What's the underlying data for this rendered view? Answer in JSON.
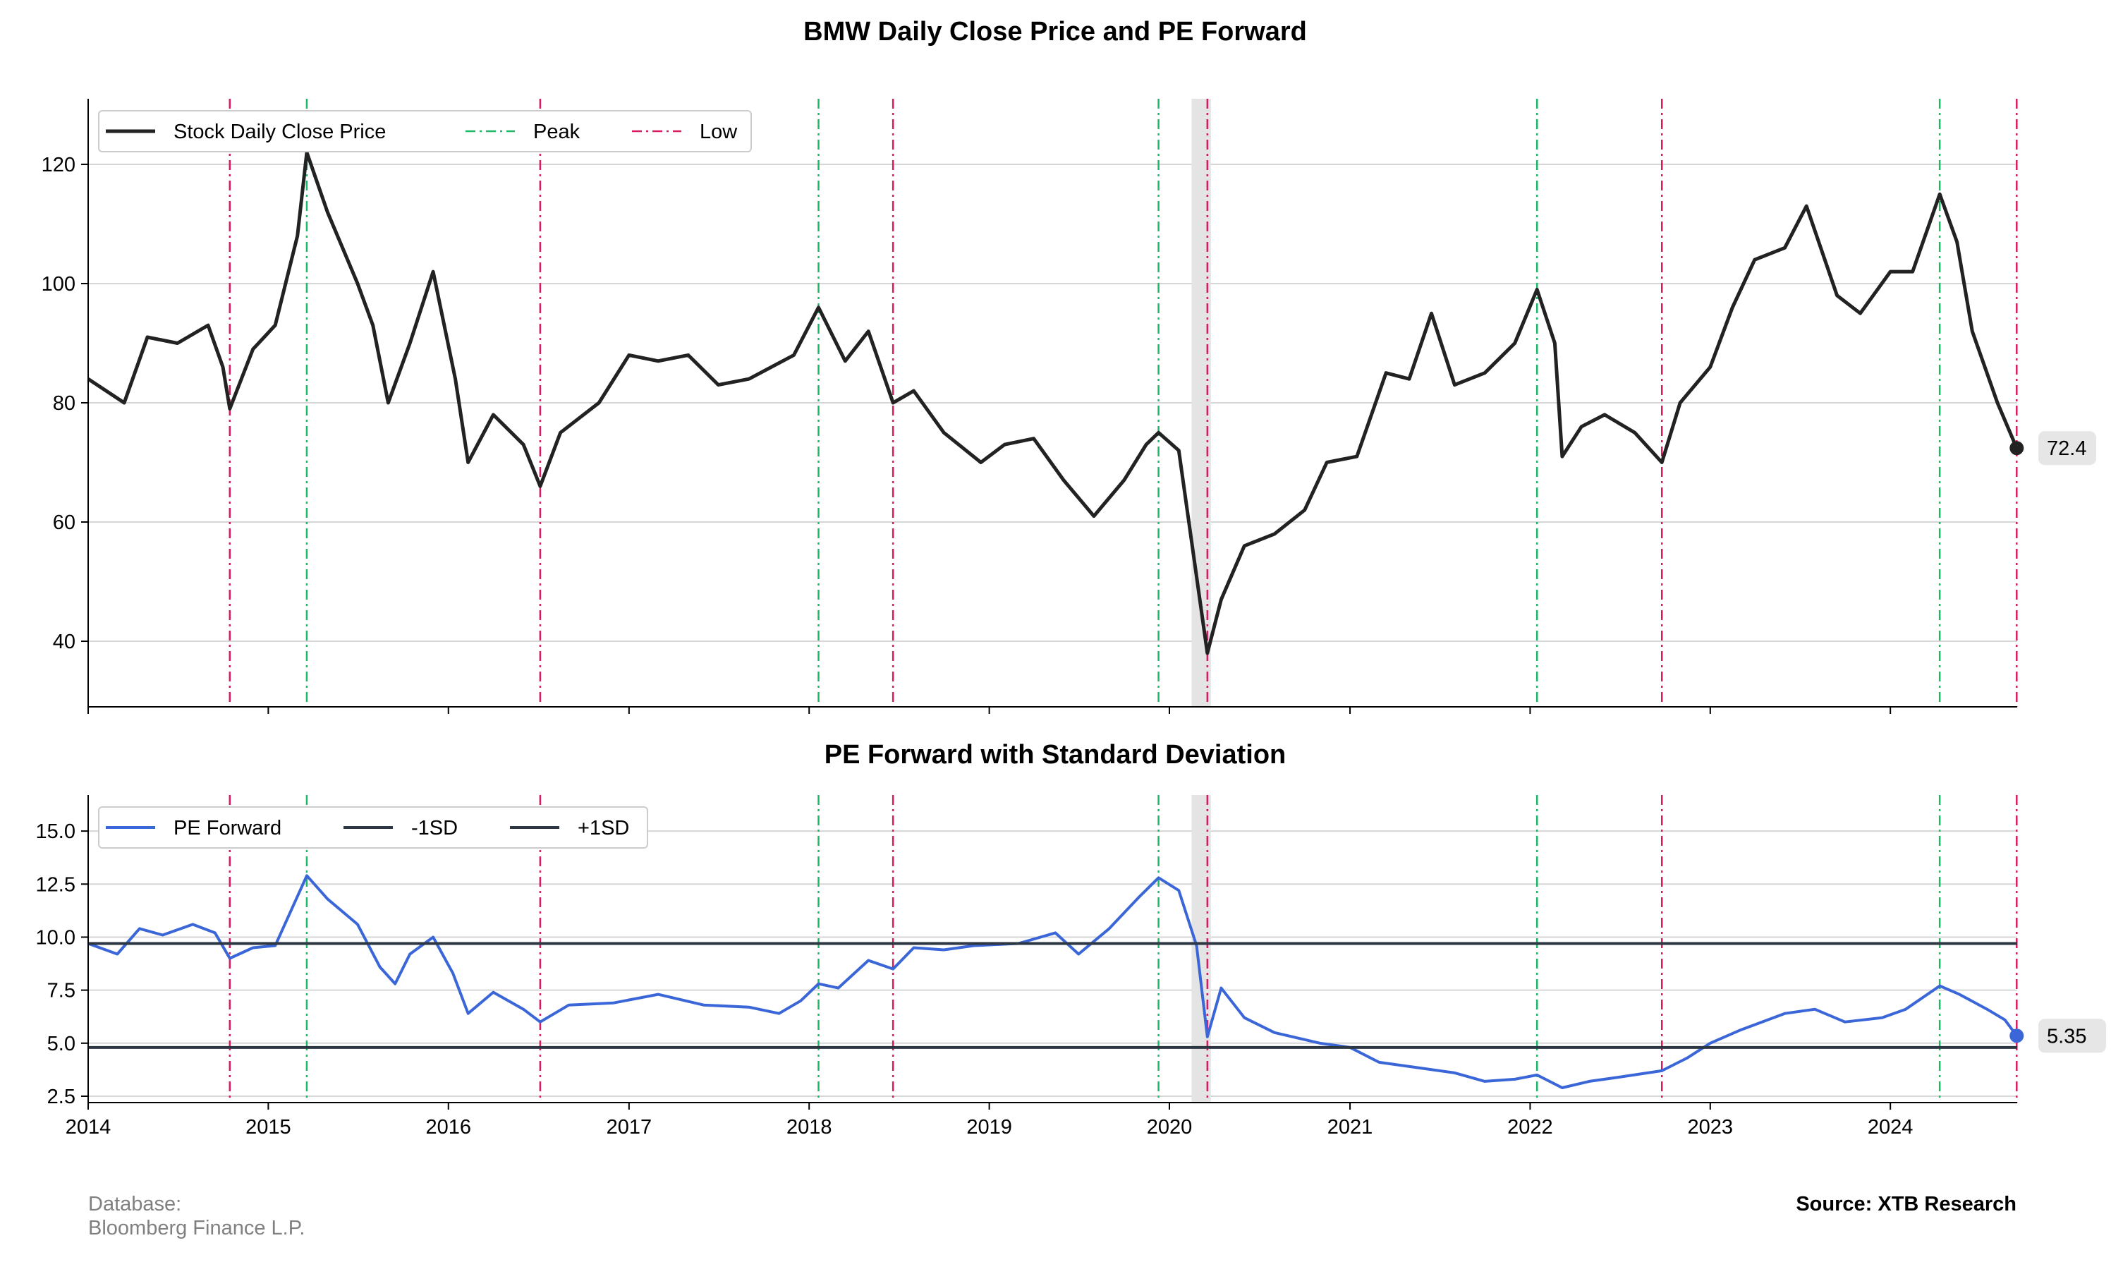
{
  "chart_data": [
    {
      "type": "line",
      "title": "BMW Daily Close Price and PE Forward",
      "xlabel": "",
      "ylabel": "",
      "ylim": [
        29,
        131
      ],
      "yticks": [
        40,
        60,
        80,
        100,
        120
      ],
      "xlim": [
        "2014-01-01",
        "2024-09-14"
      ],
      "grid": true,
      "legend_position": "top-left",
      "series": [
        {
          "name": "Stock Daily Close Price",
          "color": "#222222",
          "points": [
            [
              "2014-01-01",
              84
            ],
            [
              "2014-03-15",
              80
            ],
            [
              "2014-05-01",
              91
            ],
            [
              "2014-07-01",
              90
            ],
            [
              "2014-09-01",
              93
            ],
            [
              "2014-10-01",
              86
            ],
            [
              "2014-10-15",
              79
            ],
            [
              "2014-12-01",
              89
            ],
            [
              "2015-01-15",
              93
            ],
            [
              "2015-03-01",
              108
            ],
            [
              "2015-03-20",
              122
            ],
            [
              "2015-05-01",
              112
            ],
            [
              "2015-07-01",
              100
            ],
            [
              "2015-08-01",
              93
            ],
            [
              "2015-09-01",
              80
            ],
            [
              "2015-10-15",
              90
            ],
            [
              "2015-12-01",
              102
            ],
            [
              "2016-01-15",
              84
            ],
            [
              "2016-02-10",
              70
            ],
            [
              "2016-04-01",
              78
            ],
            [
              "2016-06-01",
              73
            ],
            [
              "2016-07-05",
              66
            ],
            [
              "2016-08-15",
              75
            ],
            [
              "2016-11-01",
              80
            ],
            [
              "2017-01-01",
              88
            ],
            [
              "2017-03-01",
              87
            ],
            [
              "2017-05-01",
              88
            ],
            [
              "2017-07-01",
              83
            ],
            [
              "2017-09-01",
              84
            ],
            [
              "2017-12-01",
              88
            ],
            [
              "2018-01-20",
              96
            ],
            [
              "2018-03-15",
              87
            ],
            [
              "2018-05-01",
              92
            ],
            [
              "2018-06-20",
              80
            ],
            [
              "2018-08-01",
              82
            ],
            [
              "2018-10-01",
              75
            ],
            [
              "2018-12-15",
              70
            ],
            [
              "2019-02-01",
              73
            ],
            [
              "2019-04-01",
              74
            ],
            [
              "2019-06-01",
              67
            ],
            [
              "2019-08-01",
              61
            ],
            [
              "2019-10-01",
              67
            ],
            [
              "2019-11-15",
              73
            ],
            [
              "2019-12-10",
              75
            ],
            [
              "2020-01-20",
              72
            ],
            [
              "2020-03-18",
              38
            ],
            [
              "2020-04-15",
              47
            ],
            [
              "2020-06-01",
              56
            ],
            [
              "2020-08-01",
              58
            ],
            [
              "2020-10-01",
              62
            ],
            [
              "2020-11-15",
              70
            ],
            [
              "2021-01-15",
              71
            ],
            [
              "2021-03-15",
              85
            ],
            [
              "2021-05-01",
              84
            ],
            [
              "2021-06-15",
              95
            ],
            [
              "2021-08-01",
              83
            ],
            [
              "2021-10-01",
              85
            ],
            [
              "2021-12-01",
              90
            ],
            [
              "2022-01-15",
              99
            ],
            [
              "2022-02-20",
              90
            ],
            [
              "2022-03-07",
              71
            ],
            [
              "2022-04-15",
              76
            ],
            [
              "2022-06-01",
              78
            ],
            [
              "2022-08-01",
              75
            ],
            [
              "2022-09-25",
              70
            ],
            [
              "2022-11-01",
              80
            ],
            [
              "2023-01-01",
              86
            ],
            [
              "2023-02-15",
              96
            ],
            [
              "2023-04-01",
              104
            ],
            [
              "2023-06-01",
              106
            ],
            [
              "2023-07-15",
              113
            ],
            [
              "2023-09-15",
              98
            ],
            [
              "2023-11-01",
              95
            ],
            [
              "2024-01-01",
              102
            ],
            [
              "2024-02-15",
              102
            ],
            [
              "2024-04-10",
              115
            ],
            [
              "2024-05-15",
              107
            ],
            [
              "2024-06-15",
              92
            ],
            [
              "2024-08-05",
              80
            ],
            [
              "2024-09-13",
              72.4
            ]
          ]
        }
      ],
      "peaks": [
        "2015-03-20",
        "2018-01-20",
        "2019-12-10",
        "2022-01-15",
        "2024-04-10"
      ],
      "lows": [
        "2014-10-15",
        "2016-07-05",
        "2018-06-20",
        "2020-03-18",
        "2022-09-25",
        "2024-09-13"
      ],
      "peak_color": "#1db866",
      "low_color": "#d81b60",
      "shaded_range": [
        "2020-02-15",
        "2020-03-25"
      ],
      "last_value_label": "72.4",
      "legend": [
        "Stock Daily Close Price",
        "Peak",
        "Low"
      ]
    },
    {
      "type": "line",
      "title": "PE Forward with Standard Deviation",
      "xlabel": "",
      "ylabel": "",
      "ylim": [
        2.2,
        16.7
      ],
      "yticks": [
        "2.5",
        "5.0",
        "7.5",
        "10.0",
        "12.5",
        "15.0"
      ],
      "xticks": [
        "2014",
        "2015",
        "2016",
        "2017",
        "2018",
        "2019",
        "2020",
        "2021",
        "2022",
        "2023",
        "2024"
      ],
      "grid": true,
      "legend_position": "top-left",
      "series": [
        {
          "name": "PE Forward",
          "color": "#3a66d8",
          "points": [
            [
              "2014-01-01",
              9.7
            ],
            [
              "2014-03-01",
              9.2
            ],
            [
              "2014-04-15",
              10.4
            ],
            [
              "2014-06-01",
              10.1
            ],
            [
              "2014-08-01",
              10.6
            ],
            [
              "2014-09-15",
              10.2
            ],
            [
              "2014-10-15",
              9.0
            ],
            [
              "2014-12-01",
              9.5
            ],
            [
              "2015-01-15",
              9.6
            ],
            [
              "2015-02-15",
              11.2
            ],
            [
              "2015-03-20",
              12.9
            ],
            [
              "2015-05-01",
              11.8
            ],
            [
              "2015-07-01",
              10.6
            ],
            [
              "2015-08-15",
              8.6
            ],
            [
              "2015-09-15",
              7.8
            ],
            [
              "2015-10-15",
              9.2
            ],
            [
              "2015-12-01",
              10.0
            ],
            [
              "2016-01-10",
              8.3
            ],
            [
              "2016-02-10",
              6.4
            ],
            [
              "2016-04-01",
              7.4
            ],
            [
              "2016-06-01",
              6.6
            ],
            [
              "2016-07-05",
              6.0
            ],
            [
              "2016-09-01",
              6.8
            ],
            [
              "2016-12-01",
              6.9
            ],
            [
              "2017-03-01",
              7.3
            ],
            [
              "2017-06-01",
              6.8
            ],
            [
              "2017-09-01",
              6.7
            ],
            [
              "2017-11-01",
              6.4
            ],
            [
              "2017-12-15",
              7.0
            ],
            [
              "2018-01-20",
              7.8
            ],
            [
              "2018-03-01",
              7.6
            ],
            [
              "2018-05-01",
              8.9
            ],
            [
              "2018-06-20",
              8.5
            ],
            [
              "2018-08-01",
              9.5
            ],
            [
              "2018-10-01",
              9.4
            ],
            [
              "2018-12-01",
              9.6
            ],
            [
              "2019-03-01",
              9.7
            ],
            [
              "2019-05-15",
              10.2
            ],
            [
              "2019-07-01",
              9.2
            ],
            [
              "2019-09-01",
              10.4
            ],
            [
              "2019-11-01",
              11.9
            ],
            [
              "2019-12-10",
              12.8
            ],
            [
              "2020-01-20",
              12.2
            ],
            [
              "2020-02-25",
              9.6
            ],
            [
              "2020-03-18",
              5.3
            ],
            [
              "2020-04-15",
              7.6
            ],
            [
              "2020-06-01",
              6.2
            ],
            [
              "2020-08-01",
              5.5
            ],
            [
              "2020-11-01",
              5.0
            ],
            [
              "2021-01-01",
              4.8
            ],
            [
              "2021-03-01",
              4.1
            ],
            [
              "2021-06-01",
              3.8
            ],
            [
              "2021-08-01",
              3.6
            ],
            [
              "2021-10-01",
              3.2
            ],
            [
              "2021-12-01",
              3.3
            ],
            [
              "2022-01-15",
              3.5
            ],
            [
              "2022-03-07",
              2.9
            ],
            [
              "2022-05-01",
              3.2
            ],
            [
              "2022-07-01",
              3.4
            ],
            [
              "2022-09-25",
              3.7
            ],
            [
              "2022-11-15",
              4.3
            ],
            [
              "2023-01-01",
              5.0
            ],
            [
              "2023-03-01",
              5.6
            ],
            [
              "2023-06-01",
              6.4
            ],
            [
              "2023-08-01",
              6.6
            ],
            [
              "2023-10-01",
              6.0
            ],
            [
              "2023-12-15",
              6.2
            ],
            [
              "2024-02-01",
              6.6
            ],
            [
              "2024-04-10",
              7.7
            ],
            [
              "2024-05-20",
              7.3
            ],
            [
              "2024-07-15",
              6.6
            ],
            [
              "2024-08-20",
              6.1
            ],
            [
              "2024-09-13",
              5.35
            ]
          ]
        },
        {
          "name": "-1SD",
          "color": "#2d3743",
          "value": 4.8
        },
        {
          "name": "+1SD",
          "color": "#2d3743",
          "value": 9.7
        }
      ],
      "peaks": [
        "2015-03-20",
        "2018-01-20",
        "2019-12-10",
        "2022-01-15",
        "2024-04-10"
      ],
      "lows": [
        "2014-10-15",
        "2016-07-05",
        "2018-06-20",
        "2020-03-18",
        "2022-09-25",
        "2024-09-13"
      ],
      "shaded_range": [
        "2020-02-15",
        "2020-03-25"
      ],
      "last_value_label": "5.35",
      "legend": [
        "PE Forward",
        "-1SD",
        "+1SD"
      ]
    }
  ],
  "footer": {
    "database_label": "Database:",
    "database_value": "Bloomberg Finance L.P.",
    "source": "Source: XTB Research"
  }
}
